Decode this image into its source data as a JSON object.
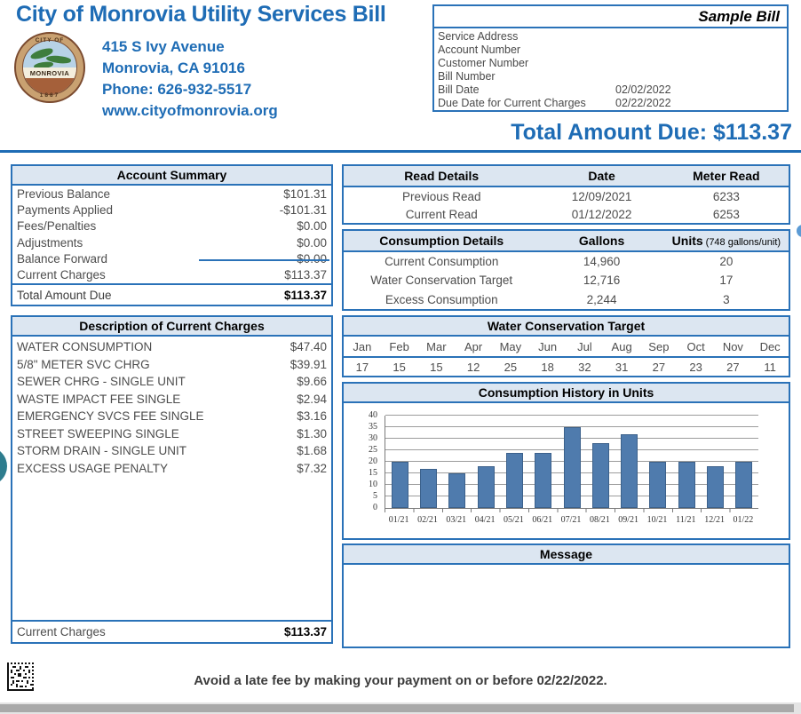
{
  "header": {
    "title": "City of Monrovia Utility Services Bill",
    "address_line1": "415 S Ivy Avenue",
    "address_line2": "Monrovia, CA 91016",
    "phone": "Phone: 626-932-5517",
    "website": "www.cityofmonrovia.org",
    "logo": {
      "ring_top": "CITY OF",
      "name": "MONROVIA",
      "year": "1887"
    }
  },
  "bill_info": {
    "watermark": "Sample Bill",
    "rows": [
      {
        "label": "Service Address",
        "value": ""
      },
      {
        "label": "Account Number",
        "value": ""
      },
      {
        "label": "Customer Number",
        "value": ""
      },
      {
        "label": "Bill Number",
        "value": ""
      },
      {
        "label": "Bill Date",
        "value": "02/02/2022"
      },
      {
        "label": "Due Date for Current Charges",
        "value": "02/22/2022"
      }
    ]
  },
  "total_due": "Total Amount Due: $113.37",
  "account_summary": {
    "title": "Account Summary",
    "rows": [
      {
        "label": "Previous Balance",
        "value": "$101.31"
      },
      {
        "label": "Payments Applied",
        "value": "-$101.31"
      },
      {
        "label": "Fees/Penalties",
        "value": "$0.00"
      },
      {
        "label": "Adjustments",
        "value": "$0.00"
      },
      {
        "label": "Balance Forward",
        "value": "$0.00"
      },
      {
        "label": "Current Charges",
        "value": "$113.37"
      }
    ],
    "total": {
      "label": "Total Amount Due",
      "value": "$113.37"
    }
  },
  "charges": {
    "title": "Description of Current Charges",
    "items": [
      {
        "label": "WATER CONSUMPTION",
        "amount": "$47.40"
      },
      {
        "label": "5/8\" METER SVC CHRG",
        "amount": "$39.91"
      },
      {
        "label": "SEWER CHRG - SINGLE UNIT",
        "amount": "$9.66"
      },
      {
        "label": "WASTE IMPACT FEE SINGLE",
        "amount": "$2.94"
      },
      {
        "label": "EMERGENCY SVCS FEE SINGLE",
        "amount": "$3.16"
      },
      {
        "label": "STREET SWEEPING SINGLE",
        "amount": "$1.30"
      },
      {
        "label": "STORM DRAIN - SINGLE UNIT",
        "amount": "$1.68"
      },
      {
        "label": "EXCESS USAGE PENALTY",
        "amount": "$7.32"
      }
    ],
    "total": {
      "label": "Current Charges",
      "amount": "$113.37"
    }
  },
  "read_details": {
    "headers": [
      "Read Details",
      "Date",
      "Meter Read"
    ],
    "rows": [
      [
        "Previous Read",
        "12/09/2021",
        "6233"
      ],
      [
        "Current Read",
        "01/12/2022",
        "6253"
      ]
    ]
  },
  "consumption_details": {
    "headers": [
      "Consumption Details",
      "Gallons",
      "Units"
    ],
    "units_note": "(748 gallons/unit)",
    "rows": [
      [
        "Current Consumption",
        "14,960",
        "20"
      ],
      [
        "Water Conservation Target",
        "12,716",
        "17"
      ],
      [
        "Excess Consumption",
        "2,244",
        "3"
      ]
    ]
  },
  "water_conservation_target": {
    "title": "Water Conservation Target",
    "months": [
      "Jan",
      "Feb",
      "Mar",
      "Apr",
      "May",
      "Jun",
      "Jul",
      "Aug",
      "Sep",
      "Oct",
      "Nov",
      "Dec"
    ],
    "values": [
      "17",
      "15",
      "15",
      "12",
      "25",
      "18",
      "32",
      "31",
      "27",
      "23",
      "27",
      "11"
    ]
  },
  "chart_data": {
    "type": "bar",
    "title": "Consumption History in Units",
    "categories": [
      "01/21",
      "02/21",
      "03/21",
      "04/21",
      "05/21",
      "06/21",
      "07/21",
      "08/21",
      "09/21",
      "10/21",
      "11/21",
      "12/21",
      "01/22"
    ],
    "values": [
      20,
      17,
      15,
      18,
      24,
      24,
      35,
      28,
      32,
      20,
      20,
      18,
      20
    ],
    "xlabel": "",
    "ylabel": "",
    "ylim": [
      0,
      40
    ],
    "ytick_step": 5,
    "grid": true,
    "legend": false,
    "bar_color": "#4f7bad"
  },
  "message": {
    "title": "Message",
    "body": ""
  },
  "footer": {
    "late_fee_notice": "Avoid a late fee by making your payment on or before 02/22/2022."
  },
  "colors": {
    "brand_blue": "#1e6cb5",
    "table_border_blue": "#2a72b8",
    "table_header_bg": "#dce6f1",
    "bar_blue": "#4f7bad",
    "edge_teal": "#2e7d8e",
    "edge_light_blue": "#5b9bd5"
  }
}
